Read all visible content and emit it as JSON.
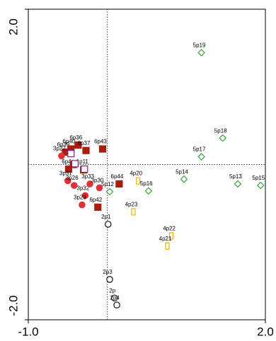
{
  "chart_data": {
    "type": "scatter",
    "xlim": [
      -1.0,
      2.0
    ],
    "xticks": [
      {
        "value": -1.0,
        "label": "-1.0"
      },
      {
        "value": 2.0,
        "label": "2.0"
      }
    ],
    "ylim": [
      -2.0,
      2.0
    ],
    "yticks": [
      {
        "value": -2.0,
        "label": "-2.0"
      },
      {
        "value": 2.0,
        "label": "2.0"
      }
    ],
    "series": [
      {
        "color": "#3aa63a",
        "marker": "diamond",
        "filled": false,
        "labels": [
          "5p19",
          "5p18",
          "5p17",
          "5p14",
          "5p16",
          "5p13",
          "5p15",
          "5p12"
        ],
        "x": [
          1.19,
          1.46,
          1.19,
          0.97,
          0.52,
          1.65,
          1.94,
          0.03
        ],
        "values": [
          1.44,
          0.34,
          0.1,
          -0.19,
          -0.34,
          -0.25,
          -0.27,
          -0.35
        ]
      },
      {
        "color": "#f0b000",
        "marker": "bar",
        "filled": false,
        "labels": [
          "4p20",
          "4p23",
          "4p22",
          "4p21"
        ],
        "x": [
          0.39,
          0.33,
          0.81,
          0.76
        ],
        "values": [
          -0.21,
          -0.61,
          -0.92,
          -1.05
        ]
      },
      {
        "color": "#111111",
        "marker": "circle",
        "filled": false,
        "labels": [
          "2p1",
          "2p3",
          "2p",
          "2p4"
        ],
        "x": [
          0.01,
          0.03,
          0.09,
          0.12
        ],
        "values": [
          -0.77,
          -1.48,
          -1.72,
          -1.81
        ]
      },
      {
        "color": "#a81e0e",
        "marker": "square",
        "filled": true,
        "labels": [
          "6p39",
          "6p40",
          "6p36",
          "6p37",
          "6p43",
          "6p4",
          null,
          null,
          "6p44",
          "6p42"
        ],
        "x": [
          -0.53,
          -0.46,
          -0.37,
          -0.27,
          -0.06,
          -0.49,
          -0.43,
          -0.3,
          0.15,
          -0.12
        ],
        "values": [
          0.16,
          0.2,
          0.25,
          0.18,
          0.2,
          -0.06,
          0.0,
          -0.07,
          -0.25,
          -0.55
        ]
      },
      {
        "color": "#7a1f8a",
        "marker": "square",
        "filled": false,
        "labels": [
          "1p11",
          null,
          null
        ],
        "x": [
          -0.29,
          -0.41,
          -0.46
        ],
        "values": [
          -0.06,
          0.01,
          0.14
        ]
      },
      {
        "color": "#e0303a",
        "marker": "circle",
        "filled": true,
        "labels": [
          "3p27",
          "3p31",
          "3p26",
          "3p32",
          "3p33",
          "3p30",
          "3p29"
        ],
        "x": [
          -0.58,
          -0.5,
          -0.42,
          -0.28,
          -0.22,
          -0.1,
          -0.32
        ],
        "values": [
          0.11,
          -0.21,
          -0.27,
          -0.4,
          -0.25,
          -0.3,
          -0.52
        ]
      }
    ]
  }
}
